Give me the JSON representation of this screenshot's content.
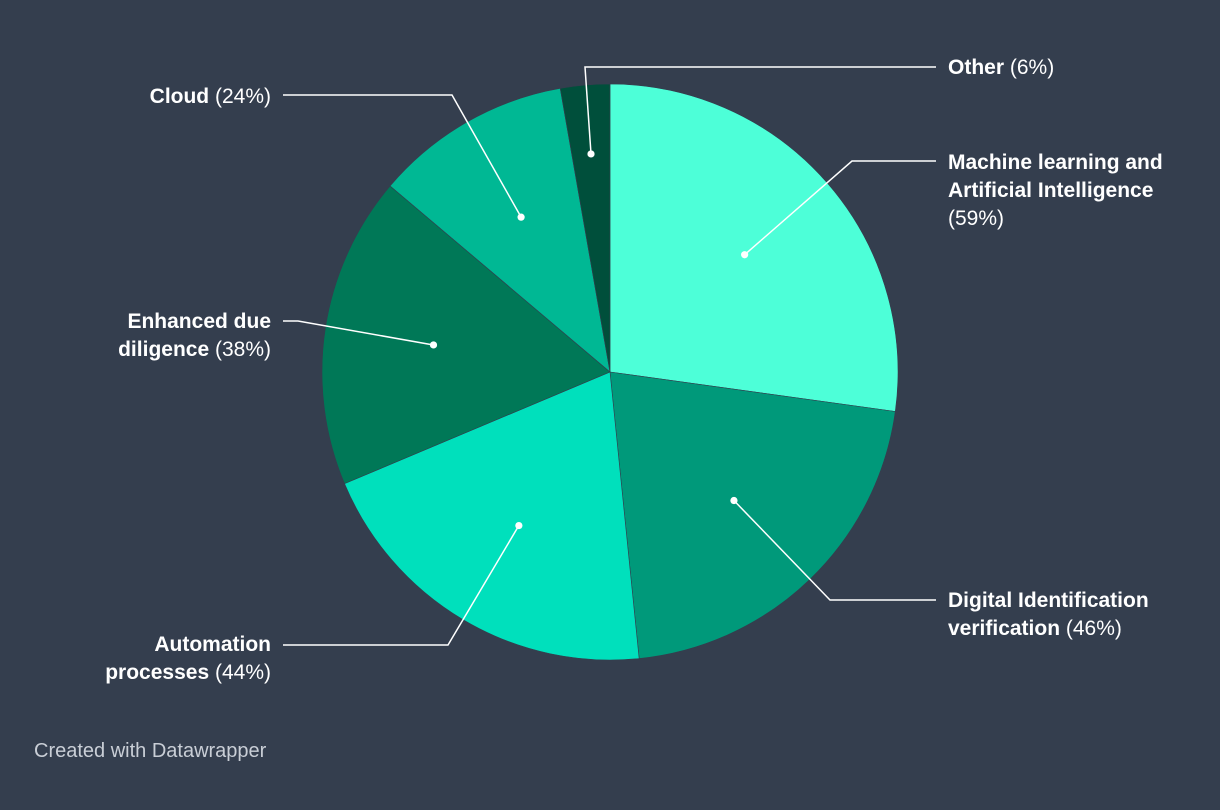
{
  "chart_data": {
    "type": "pie",
    "title": "",
    "legend": "none",
    "slices": [
      {
        "name_lines": [
          "Machine learning and",
          "Artificial Intelligence"
        ],
        "pct_label": "(59%)",
        "value": 59,
        "color": "#4dffd8"
      },
      {
        "name_lines": [
          "Digital Identification",
          "verification"
        ],
        "pct_label": "(46%)",
        "value": 46,
        "color": "#00997a"
      },
      {
        "name_lines": [
          "Automation",
          "processes"
        ],
        "pct_label": "(44%)",
        "value": 44,
        "color": "#00e0bc"
      },
      {
        "name_lines": [
          "Enhanced due",
          "diligence"
        ],
        "pct_label": "(38%)",
        "value": 38,
        "color": "#007857"
      },
      {
        "name_lines": [
          "Cloud"
        ],
        "pct_label": "(24%)",
        "value": 24,
        "color": "#00b894"
      },
      {
        "name_lines": [
          "Other"
        ],
        "pct_label": "(6%)",
        "value": 6,
        "color": "#004f3b"
      }
    ]
  },
  "footer": {
    "credit": "Created with Datawrapper"
  }
}
